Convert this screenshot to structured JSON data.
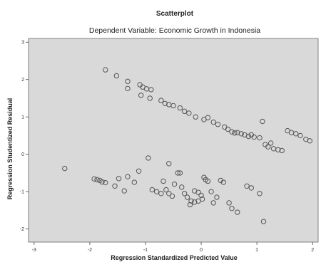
{
  "chart_data": {
    "type": "scatter",
    "title": "Scatterplot",
    "subtitle": "Dependent Variable: Economic Growth in Indonesia",
    "xlabel": "Regression Standardized Predicted Value",
    "ylabel": "Regression Studentized Residual",
    "xlim": [
      -3.1,
      2.1
    ],
    "ylim": [
      -2.35,
      3.1
    ],
    "x_ticks": [
      -3,
      -2,
      -1,
      0,
      1,
      2
    ],
    "y_ticks": [
      -2,
      -1,
      0,
      1,
      2,
      3
    ],
    "x_tick_labels": [
      "-3",
      "-2",
      "-1",
      "0",
      "1",
      "2"
    ],
    "y_tick_labels": [
      "-2",
      "-1",
      "0",
      "1",
      "2",
      "3"
    ],
    "grid": false,
    "plot_background": "#d9d9d9",
    "marker_stroke": "#555555",
    "points": [
      [
        -1.72,
        2.26
      ],
      [
        -1.52,
        2.1
      ],
      [
        -1.32,
        1.95
      ],
      [
        -1.32,
        1.76
      ],
      [
        -1.1,
        1.86
      ],
      [
        -1.05,
        1.8
      ],
      [
        -0.98,
        1.75
      ],
      [
        -0.9,
        1.73
      ],
      [
        -1.08,
        1.58
      ],
      [
        -0.92,
        1.5
      ],
      [
        -0.72,
        1.44
      ],
      [
        -0.65,
        1.36
      ],
      [
        -0.58,
        1.33
      ],
      [
        -0.5,
        1.3
      ],
      [
        -0.38,
        1.24
      ],
      [
        -0.3,
        1.15
      ],
      [
        -0.22,
        1.1
      ],
      [
        -0.1,
        1.0
      ],
      [
        0.05,
        0.93
      ],
      [
        0.12,
        0.98
      ],
      [
        0.22,
        0.86
      ],
      [
        0.3,
        0.8
      ],
      [
        0.42,
        0.73
      ],
      [
        0.48,
        0.67
      ],
      [
        0.55,
        0.6
      ],
      [
        0.6,
        0.57
      ],
      [
        0.65,
        0.58
      ],
      [
        0.72,
        0.55
      ],
      [
        0.78,
        0.52
      ],
      [
        0.85,
        0.48
      ],
      [
        0.9,
        0.52
      ],
      [
        0.95,
        0.46
      ],
      [
        1.05,
        0.44
      ],
      [
        1.1,
        0.88
      ],
      [
        1.15,
        0.26
      ],
      [
        1.2,
        0.2
      ],
      [
        1.25,
        0.3
      ],
      [
        1.3,
        0.15
      ],
      [
        1.38,
        0.12
      ],
      [
        1.45,
        0.1
      ],
      [
        1.55,
        0.63
      ],
      [
        1.62,
        0.58
      ],
      [
        1.7,
        0.55
      ],
      [
        1.78,
        0.5
      ],
      [
        1.88,
        0.4
      ],
      [
        1.95,
        0.36
      ],
      [
        -2.45,
        -0.38
      ],
      [
        -1.92,
        -0.66
      ],
      [
        -1.87,
        -0.68
      ],
      [
        -1.82,
        -0.7
      ],
      [
        -1.78,
        -0.74
      ],
      [
        -1.72,
        -0.76
      ],
      [
        -1.55,
        -0.85
      ],
      [
        -1.48,
        -0.65
      ],
      [
        -1.38,
        -0.98
      ],
      [
        -1.32,
        -0.6
      ],
      [
        -1.2,
        -0.75
      ],
      [
        -1.12,
        -0.45
      ],
      [
        -0.95,
        -0.1
      ],
      [
        -0.88,
        -0.95
      ],
      [
        -0.8,
        -1.0
      ],
      [
        -0.72,
        -1.05
      ],
      [
        -0.68,
        -0.72
      ],
      [
        -0.63,
        -0.95
      ],
      [
        -0.58,
        -1.05
      ],
      [
        -0.52,
        -1.12
      ],
      [
        -0.48,
        -0.8
      ],
      [
        -0.42,
        -0.5
      ],
      [
        -0.35,
        -0.88
      ],
      [
        -0.3,
        -1.05
      ],
      [
        -0.25,
        -1.15
      ],
      [
        -0.18,
        -1.25
      ],
      [
        -0.12,
        -0.98
      ],
      [
        -0.05,
        -1.02
      ],
      [
        0.0,
        -1.1
      ],
      [
        0.02,
        -1.2
      ],
      [
        0.05,
        -0.62
      ],
      [
        0.08,
        -0.68
      ],
      [
        0.12,
        -0.72
      ],
      [
        0.18,
        -1.0
      ],
      [
        0.22,
        -1.3
      ],
      [
        0.28,
        -1.15
      ],
      [
        0.35,
        -0.7
      ],
      [
        0.4,
        -0.75
      ],
      [
        0.5,
        -1.3
      ],
      [
        0.55,
        -1.45
      ],
      [
        0.65,
        -1.55
      ],
      [
        0.82,
        -0.85
      ],
      [
        0.9,
        -0.9
      ],
      [
        1.05,
        -1.05
      ],
      [
        1.12,
        -1.8
      ],
      [
        -0.38,
        -0.5
      ],
      [
        -0.58,
        -0.25
      ],
      [
        -0.12,
        -1.28
      ],
      [
        -0.2,
        -1.35
      ],
      [
        -0.05,
        -1.25
      ]
    ]
  }
}
